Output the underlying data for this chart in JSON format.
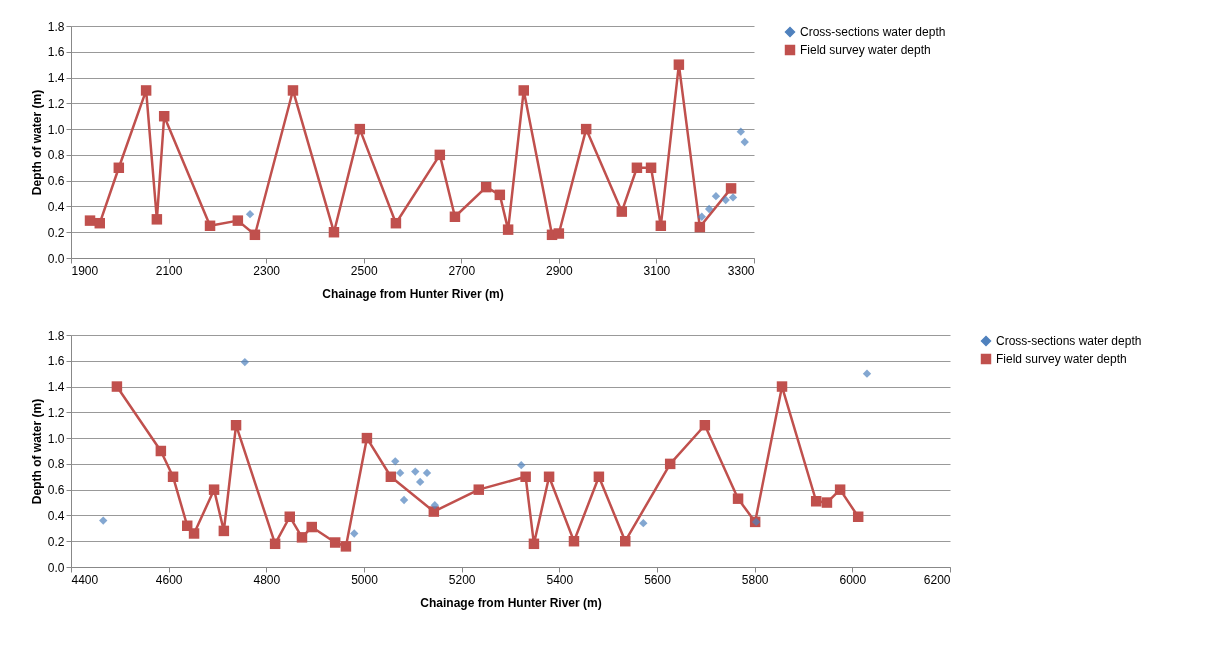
{
  "chart_data": [
    {
      "type": "line",
      "xlabel": "Chainage from Hunter River (m)",
      "ylabel": "Depth of water (m)",
      "xlim": [
        1900,
        3300
      ],
      "xticks": [
        1900,
        2100,
        2300,
        2500,
        2700,
        2900,
        3100,
        3300
      ],
      "ylim": [
        0,
        1.8
      ],
      "yticks": [
        {
          "value": 0,
          "label": "0.0"
        },
        {
          "value": 0.2,
          "label": "0.2"
        },
        {
          "value": 0.4,
          "label": "0.4"
        },
        {
          "value": 0.6,
          "label": "0.6"
        },
        {
          "value": 0.8,
          "label": "0.8"
        },
        {
          "value": 1,
          "label": "1.0"
        },
        {
          "value": 1.2,
          "label": "1.2"
        },
        {
          "value": 1.4,
          "label": "1.4"
        },
        {
          "value": 1.6,
          "label": "1.6"
        },
        {
          "value": 1.8,
          "label": "1.8"
        }
      ],
      "grid": "y",
      "legend": "right",
      "series": [
        {
          "name": "Cross-sections water depth",
          "type": "scatter",
          "marker": "diamond",
          "color": "#4f81bd",
          "x": [
            2267,
            3193,
            3208,
            3222,
            3242,
            3257,
            3273,
            3281
          ],
          "values": [
            0.34,
            0.32,
            0.38,
            0.48,
            0.45,
            0.47,
            0.98,
            0.9
          ]
        },
        {
          "name": "Field survey water depth",
          "type": "line",
          "marker": "square",
          "color": "#c0504d",
          "x": [
            1939,
            1959,
            1998,
            2054,
            2076,
            2091,
            2185,
            2242,
            2277,
            2355,
            2439,
            2492,
            2566,
            2656,
            2687,
            2751,
            2779,
            2796,
            2828,
            2886,
            2900,
            2956,
            3029,
            3060,
            3089,
            3109,
            3146,
            3189,
            3253
          ],
          "values": [
            0.29,
            0.27,
            0.7,
            1.3,
            0.3,
            1.1,
            0.25,
            0.29,
            0.18,
            1.3,
            0.2,
            1.0,
            0.27,
            0.8,
            0.32,
            0.55,
            0.49,
            0.22,
            1.3,
            0.18,
            0.19,
            1.0,
            0.36,
            0.7,
            0.7,
            0.25,
            1.5,
            0.24,
            0.54
          ]
        }
      ]
    },
    {
      "type": "line",
      "xlabel": "Chainage from Hunter River (m)",
      "ylabel": "Depth of water (m)",
      "xlim": [
        4400,
        6200
      ],
      "xticks": [
        4400,
        4600,
        4800,
        5000,
        5200,
        5400,
        5600,
        5800,
        6000,
        6200
      ],
      "ylim": [
        0,
        1.8
      ],
      "yticks": [
        {
          "value": 0,
          "label": "0.0"
        },
        {
          "value": 0.2,
          "label": "0.2"
        },
        {
          "value": 0.4,
          "label": "0.4"
        },
        {
          "value": 0.6,
          "label": "0.6"
        },
        {
          "value": 0.8,
          "label": "0.8"
        },
        {
          "value": 1,
          "label": "1.0"
        },
        {
          "value": 1.2,
          "label": "1.2"
        },
        {
          "value": 1.4,
          "label": "1.4"
        },
        {
          "value": 1.6,
          "label": "1.6"
        },
        {
          "value": 1.8,
          "label": "1.8"
        }
      ],
      "grid": "y",
      "legend": "right",
      "series": [
        {
          "name": "Cross-sections water depth",
          "type": "scatter",
          "marker": "diamond",
          "color": "#4f81bd",
          "x": [
            4466,
            4756,
            4980,
            5064,
            5074,
            5082,
            5105,
            5115,
            5129,
            5145,
            5322,
            5572,
            5803,
            6030
          ],
          "values": [
            0.36,
            1.59,
            0.26,
            0.82,
            0.73,
            0.52,
            0.74,
            0.66,
            0.73,
            0.48,
            0.79,
            0.34,
            0.35,
            1.5
          ]
        },
        {
          "name": "Field survey water depth",
          "type": "line",
          "marker": "square",
          "color": "#c0504d",
          "x": [
            4494,
            4584,
            4609,
            4638,
            4652,
            4693,
            4713,
            4738,
            4818,
            4848,
            4873,
            4893,
            4941,
            4963,
            5006,
            5055,
            5143,
            5235,
            5331,
            5348,
            5379,
            5430,
            5481,
            5535,
            5627,
            5698,
            5766,
            5801,
            5856,
            5926,
            5948,
            5975,
            6012
          ],
          "values": [
            1.4,
            0.9,
            0.7,
            0.32,
            0.26,
            0.6,
            0.28,
            1.1,
            0.18,
            0.39,
            0.23,
            0.31,
            0.19,
            0.16,
            1.0,
            0.7,
            0.43,
            0.6,
            0.7,
            0.18,
            0.7,
            0.2,
            0.7,
            0.2,
            0.8,
            1.1,
            0.53,
            0.35,
            1.4,
            0.51,
            0.5,
            0.6,
            0.39
          ]
        }
      ]
    }
  ]
}
